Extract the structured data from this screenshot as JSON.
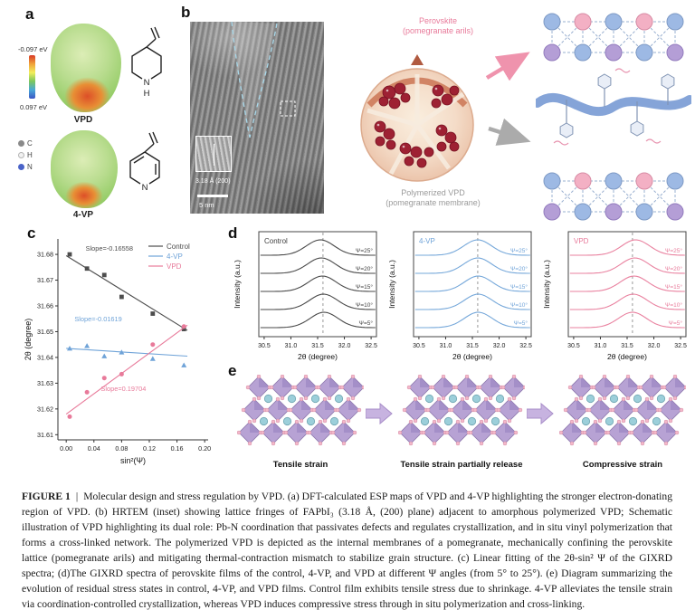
{
  "panel_a": {
    "label": "a",
    "scale_max": "-0.097 eV",
    "scale_min": "0.097 eV",
    "molecule_1": "VPD",
    "molecule_2": "4-VP",
    "atoms": [
      "C",
      "H",
      "N"
    ]
  },
  "panel_b": {
    "label": "b",
    "inset_label": "3.18 Å (200)",
    "scale_bar": "5 nm",
    "perovskite_label": "Perovskite\n(pomegranate arils)",
    "vpd_label": "Polymerized VPD\n(pomegranate membrane)"
  },
  "panel_c": {
    "label": "c"
  },
  "panel_d": {
    "label": "d"
  },
  "panel_e": {
    "label": "e",
    "captions": [
      "Tensile strain",
      "Tensile strain partially release",
      "Compressive strain"
    ]
  },
  "chart_data": [
    {
      "id": "panel_c",
      "type": "scatter",
      "xlabel": "sin²(Ψ)",
      "ylabel": "2θ (degree)",
      "xlim": [
        -0.012,
        0.205
      ],
      "ylim": [
        31.608,
        31.686
      ],
      "xticks": [
        0.0,
        0.04,
        0.08,
        0.12,
        0.16,
        0.2
      ],
      "yticks": [
        31.61,
        31.62,
        31.63,
        31.64,
        31.65,
        31.66,
        31.67,
        31.68
      ],
      "grid": false,
      "legend_position": "top-right",
      "series": [
        {
          "name": "Control",
          "color": "#4d4d4d",
          "marker": "square",
          "slope_label": "Slope=-0.16558",
          "label_pos": [
            0.028,
            31.6815
          ],
          "x": [
            0.005,
            0.03,
            0.055,
            0.08,
            0.125,
            0.17
          ],
          "y": [
            31.68,
            31.6745,
            31.672,
            31.6635,
            31.657,
            31.651
          ],
          "fit": [
            [
              0.0,
              31.6795
            ],
            [
              0.175,
              31.6505
            ]
          ]
        },
        {
          "name": "4-VP",
          "color": "#6fa3d8",
          "marker": "triangle",
          "slope_label": "Slope=-0.01619",
          "label_pos": [
            0.012,
            31.654
          ],
          "x": [
            0.005,
            0.03,
            0.055,
            0.08,
            0.125,
            0.17
          ],
          "y": [
            31.6435,
            31.6445,
            31.6405,
            31.642,
            31.6395,
            31.637
          ],
          "fit": [
            [
              0.0,
              31.6435
            ],
            [
              0.175,
              31.6405
            ]
          ]
        },
        {
          "name": "VPD",
          "color": "#e87a9a",
          "marker": "circle",
          "slope_label": "Slope=0.19704",
          "label_pos": [
            0.05,
            31.627
          ],
          "x": [
            0.005,
            0.03,
            0.055,
            0.08,
            0.125,
            0.17
          ],
          "y": [
            31.617,
            31.6265,
            31.632,
            31.6335,
            31.645,
            31.652
          ],
          "fit": [
            [
              0.0,
              31.618
            ],
            [
              0.175,
              31.6525
            ]
          ]
        }
      ]
    },
    {
      "id": "panel_d",
      "type": "line",
      "xlabel": "2θ (degree)",
      "ylabel": "Intensity (a.u.)",
      "xlim": [
        30.4,
        32.6
      ],
      "xticks": [
        30.5,
        31.0,
        31.5,
        32.0,
        32.5
      ],
      "dashed_x": 31.6,
      "psi_labels": [
        "Ψ=25°",
        "Ψ=20°",
        "Ψ=15°",
        "Ψ=10°",
        "Ψ=5°"
      ],
      "panels": [
        {
          "name": "Control",
          "color": "#3f3f3f",
          "centers": [
            31.55,
            31.57,
            31.59,
            31.61,
            31.62
          ]
        },
        {
          "name": "4-VP",
          "color": "#6fa3d8",
          "centers": [
            31.6,
            31.6,
            31.61,
            31.61,
            31.61
          ]
        },
        {
          "name": "VPD",
          "color": "#e87a9a",
          "centers": [
            31.66,
            31.645,
            31.63,
            31.615,
            31.6
          ]
        }
      ]
    }
  ],
  "caption": {
    "label": "FIGURE 1",
    "separator": "|",
    "body": "Molecular design and stress regulation by VPD. (a) DFT-calculated ESP maps of VPD and 4-VP highlighting the stronger electron-donating region of VPD. (b) HRTEM (inset) showing lattice fringes of FAPbI₃ (3.18 Å, (200) plane) adjacent to amorphous polymerized VPD; Schematic illustration of VPD highlighting its dual role: Pb-N coordination that passivates defects and regulates crystallization, and in situ vinyl polymerization that forms a cross-linked network. The polymerized VPD is depicted as the internal membranes of a pomegranate, mechanically confining the perovskite lattice (pomegranate arils) and mitigating thermal-contraction mismatch to stabilize grain structure. (c) Linear fitting of the 2θ-sin² Ψ of the GIXRD spectra; (d)The GIXRD spectra of perovskite films of the control, 4-VP, and VPD at different Ψ angles (from 5° to 25°). (e) Diagram summarizing the evolution of residual stress states in control, 4-VP, and VPD films. Control film exhibits tensile stress due to shrinkage. 4-VP alleviates the tensile strain via coordination-controlled crystallization, whereas VPD induces compressive stress through in situ polymerization and cross-linking."
  },
  "colors": {
    "accent_pink": "#e87a9a",
    "accent_blue": "#6fa3d8",
    "control_dark": "#4d4d4d"
  }
}
